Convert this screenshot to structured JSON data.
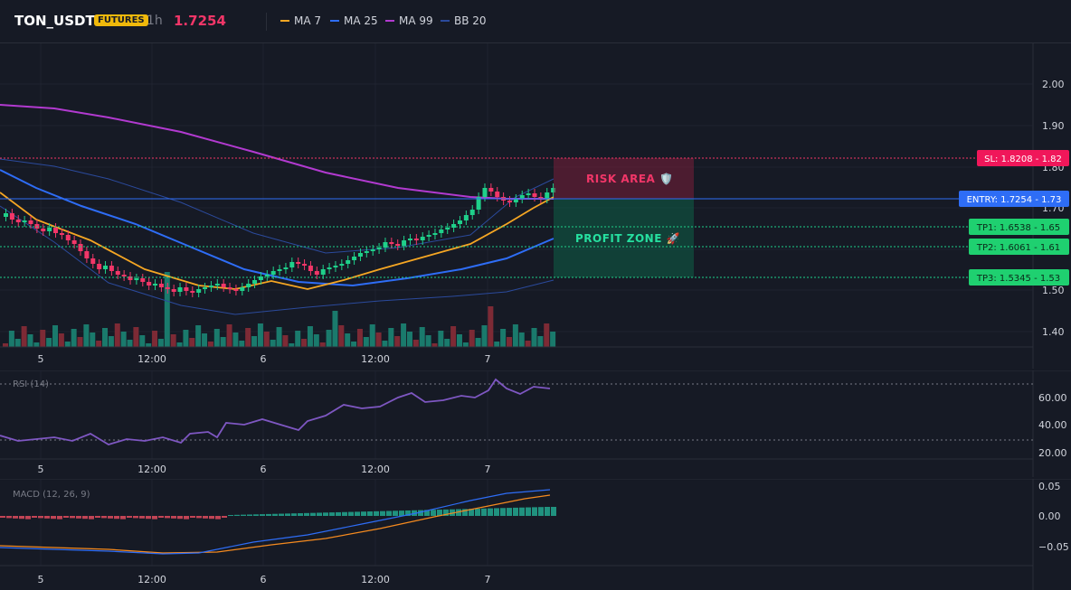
{
  "header": {
    "symbol": "TON_USDT",
    "badge": "FUTURES",
    "timeframe": "1h",
    "price": "1.7254"
  },
  "legend": [
    {
      "label": "MA 7",
      "color": "#f5a623"
    },
    {
      "label": "MA 25",
      "color": "#2e6df6"
    },
    {
      "label": "MA 99",
      "color": "#b23ad0"
    },
    {
      "label": "BB 20",
      "color": "#2b4a9c"
    }
  ],
  "price_axis": [
    "2.00",
    "1.90",
    "1.80",
    "1.70",
    "1.60",
    "1.50",
    "1.40"
  ],
  "levels": {
    "sl": "SL: 1.8208 - 1.82",
    "entry": "ENTRY: 1.7254 - 1.73",
    "tp1": "TP1: 1.6538 - 1.65",
    "tp2": "TP2: 1.6061 - 1.61",
    "tp3": "TP3: 1.5345 - 1.53"
  },
  "zones": {
    "risk": "RISK AREA 🛡️",
    "profit": "PROFIT ZONE 🚀"
  },
  "time_axis": [
    "5",
    "12:00",
    "6",
    "12:00",
    "7"
  ],
  "rsi": {
    "label": "RSI (14)",
    "ticks": [
      "60.00",
      "40.00",
      "20.00"
    ]
  },
  "macd": {
    "label": "MACD (12, 26, 9)",
    "ticks": [
      "0.05",
      "0.00",
      "−0.05"
    ]
  },
  "colors": {
    "up": "#1fd08a",
    "down": "#f23668",
    "volume_up": "#1a7a6c",
    "volume_down": "#7d2a35",
    "macd_hist_up": "#22a88f",
    "macd_hist_down": "#e04c5e",
    "rsi_line": "#7e57c2",
    "macd_line": "#2e6df6",
    "signal_line": "#f58a1f"
  }
}
